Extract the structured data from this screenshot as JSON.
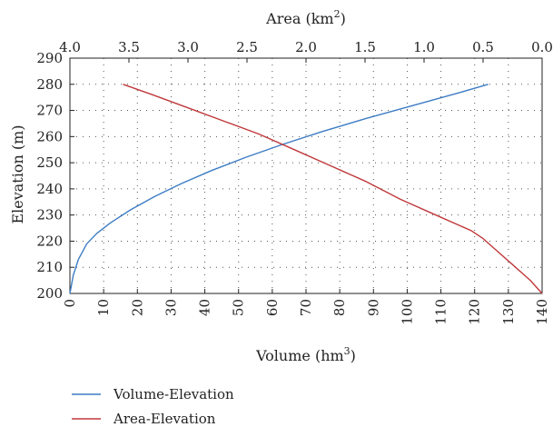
{
  "chart_data": {
    "type": "line",
    "x_bottom": {
      "label_main": "Volume (hm",
      "label_sup": "3",
      "label_tail": ")",
      "range": [
        0,
        140
      ],
      "ticks": [
        "0",
        "10",
        "20",
        "30",
        "40",
        "50",
        "60",
        "70",
        "80",
        "90",
        "100",
        "110",
        "120",
        "130",
        "140"
      ]
    },
    "x_top": {
      "label_main": "Area (km",
      "label_sup": "2",
      "label_tail": ")",
      "range": [
        4.0,
        0.0
      ],
      "ticks": [
        "4.0",
        "3.5",
        "3.0",
        "2.5",
        "2.0",
        "1.5",
        "1.0",
        "0.5",
        "0.0"
      ]
    },
    "y": {
      "label": "Elevation (m)",
      "range": [
        200,
        290
      ],
      "ticks": [
        "200",
        "210",
        "220",
        "230",
        "240",
        "250",
        "260",
        "270",
        "280",
        "290"
      ]
    },
    "grid": "dotted",
    "legend_position": "bottom-left",
    "series": [
      {
        "name": "Volume-Elevation",
        "axis": "bottom",
        "color": "#3d7cc4",
        "x": [
          0,
          1,
          2.5,
          5,
          8,
          12,
          18,
          25,
          33,
          42,
          52,
          63,
          75,
          88,
          102,
          116,
          124
        ],
        "y": [
          200,
          207,
          213,
          219,
          223,
          227,
          232,
          237,
          242,
          247,
          252,
          257,
          262,
          267,
          272,
          277,
          280
        ]
      },
      {
        "name": "Area-Elevation",
        "axis": "top",
        "color": "#c0393b",
        "x": [
          3.55,
          3.3,
          3.0,
          2.7,
          2.4,
          2.1,
          1.8,
          1.5,
          1.2,
          0.9,
          0.6,
          0.5,
          0.4,
          0.25,
          0.1,
          0.0
        ],
        "y": [
          280,
          276,
          271,
          266,
          261,
          255,
          249,
          243,
          236,
          230,
          224,
          221,
          217,
          211,
          205,
          200
        ]
      }
    ]
  }
}
